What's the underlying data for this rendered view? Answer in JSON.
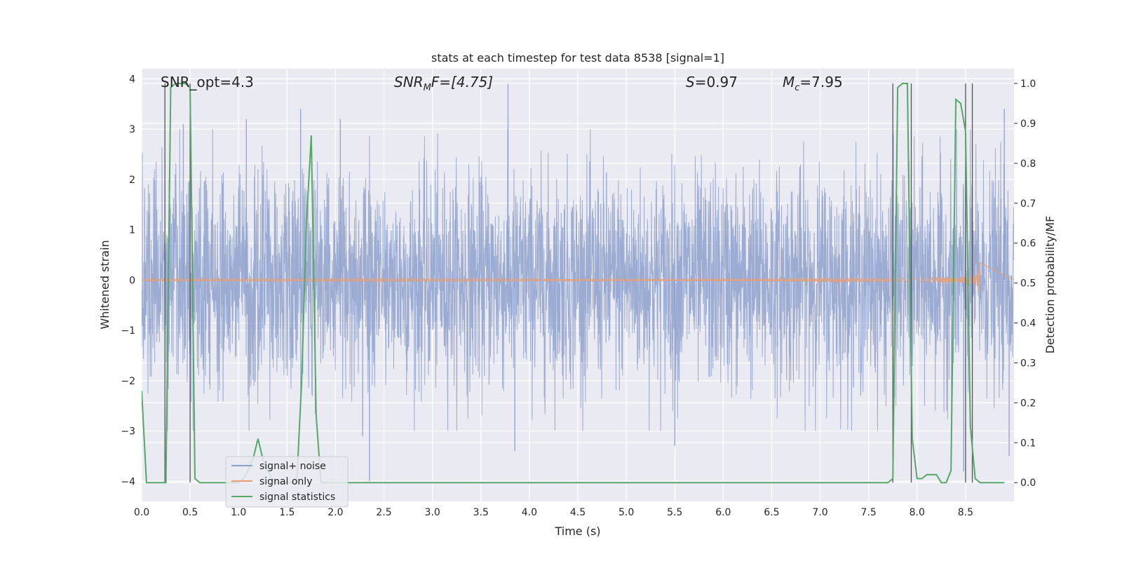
{
  "chart_data": {
    "type": "line",
    "title": "stats at each timestep for test data 8538 [signal=1]",
    "xlabel": "Time (s)",
    "ylabel": "Whitened strain",
    "ylabel_right": "Detection probability/MF",
    "xlim": [
      0.0,
      9.0
    ],
    "ylim": [
      -4.4,
      4.2
    ],
    "ylim_right": [
      -0.047,
      1.037
    ],
    "x_ticks": [
      "0.0",
      "0.5",
      "1.0",
      "1.5",
      "2.0",
      "2.5",
      "3.0",
      "3.5",
      "4.0",
      "4.5",
      "5.0",
      "5.5",
      "6.0",
      "6.5",
      "7.0",
      "7.5",
      "8.0",
      "8.5"
    ],
    "y_ticks": [
      "4",
      "3",
      "2",
      "1",
      "0",
      "−1",
      "−2",
      "−3",
      "−4"
    ],
    "y_ticks_right": [
      "1.0",
      "0.9",
      "0.8",
      "0.7",
      "0.6",
      "0.5",
      "0.4",
      "0.3",
      "0.2",
      "0.1",
      "0.0"
    ],
    "grid": true,
    "legend_position": "lower-left",
    "annotations": {
      "snr_opt": "SNR_opt=4.3",
      "snr_mf_var": "SNR",
      "snr_mf_sub": "M",
      "snr_mf_rest": "F=[4.75]",
      "s_var": "S",
      "s_rest": "=0.97",
      "mc_var": "M",
      "mc_sub": "c",
      "mc_rest": "=7.95"
    },
    "vertical_lines_x": [
      0.24,
      0.5,
      7.75,
      7.94,
      8.5,
      8.57
    ],
    "series": [
      {
        "name": "signal+ noise",
        "color": "#8da0cb",
        "description_level": "noise band roughly within [-2.3, 2.3], spikes to about +3.9 and -4.0",
        "peaks": [
          {
            "x": 0.43,
            "y": 3.1
          },
          {
            "x": 1.08,
            "y": 3.2
          },
          {
            "x": 1.64,
            "y": 3.4
          },
          {
            "x": 2.05,
            "y": 3.2
          },
          {
            "x": 2.35,
            "y": -4.0
          },
          {
            "x": 2.28,
            "y": -3.1
          },
          {
            "x": 3.78,
            "y": 3.9
          },
          {
            "x": 3.85,
            "y": -3.4
          },
          {
            "x": 5.5,
            "y": -3.3
          },
          {
            "x": 8.48,
            "y": -3.8
          },
          {
            "x": 8.9,
            "y": 3.4
          },
          {
            "x": 8.95,
            "y": -3.5
          }
        ]
      },
      {
        "name": "signal only",
        "color": "#e5a07a",
        "description_level": "chirp near 0, amplitude growing to about 0.55 near x=8.65"
      },
      {
        "name": "signal statistics",
        "color": "#55a868",
        "axis": "right",
        "x": [
          0.0,
          0.05,
          0.1,
          0.15,
          0.2,
          0.25,
          0.3,
          0.35,
          0.4,
          0.45,
          0.5,
          0.55,
          0.6,
          0.65,
          0.7,
          0.75,
          0.8,
          0.85,
          0.9,
          0.95,
          1.0,
          1.05,
          1.1,
          1.15,
          1.2,
          1.25,
          1.3,
          1.35,
          1.4,
          1.45,
          1.5,
          1.55,
          1.6,
          1.65,
          1.7,
          1.75,
          1.8,
          1.85,
          1.9,
          1.95,
          2.0,
          7.7,
          7.75,
          7.8,
          7.85,
          7.9,
          7.95,
          8.0,
          8.05,
          8.1,
          8.15,
          8.2,
          8.25,
          8.3,
          8.35,
          8.4,
          8.45,
          8.5,
          8.55,
          8.6,
          8.65,
          8.7,
          8.75,
          8.8,
          8.85,
          8.9
        ],
        "y": [
          0.23,
          0.0,
          0.0,
          0.0,
          0.0,
          0.0,
          0.99,
          1.0,
          1.0,
          1.0,
          0.99,
          0.01,
          0.0,
          0.0,
          0.0,
          0.0,
          0.0,
          0.0,
          0.0,
          0.0,
          0.0,
          0.01,
          0.03,
          0.06,
          0.11,
          0.06,
          0.03,
          0.01,
          0.0,
          0.0,
          0.0,
          0.0,
          0.0,
          0.25,
          0.65,
          0.87,
          0.17,
          0.0,
          0.0,
          0.0,
          0.0,
          0.0,
          0.01,
          0.99,
          1.0,
          1.0,
          0.11,
          0.01,
          0.01,
          0.02,
          0.02,
          0.02,
          0.0,
          0.0,
          0.03,
          0.96,
          0.95,
          0.88,
          0.14,
          0.01,
          0.0,
          0.0,
          0.0,
          0.0,
          0.0,
          0.0
        ]
      }
    ]
  }
}
